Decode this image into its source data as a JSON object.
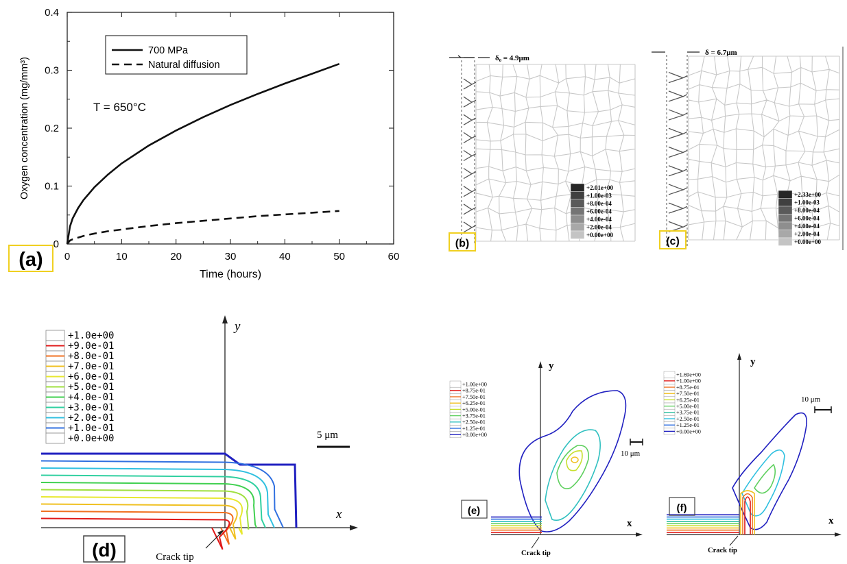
{
  "chart_data": [
    {
      "type": "line",
      "panel": "(a)",
      "xlabel": "Time (hours)",
      "ylabel": "Oxygen concentration (mg/mm³)",
      "xlim": [
        0,
        60
      ],
      "ylim": [
        0,
        0.4
      ],
      "xticks": [
        "0",
        "10",
        "20",
        "30",
        "40",
        "50",
        "60"
      ],
      "yticks": [
        "0",
        "0.1",
        "0.2",
        "0.3",
        "0.4"
      ],
      "annotation": "T = 650°C",
      "legend_position": "top-left",
      "series": [
        {
          "name": "700 MPa",
          "style": "solid",
          "x": [
            0,
            0.5,
            1,
            2,
            3,
            5,
            7.5,
            10,
            15,
            20,
            25,
            30,
            35,
            40,
            45,
            50
          ],
          "y": [
            0,
            0.03,
            0.044,
            0.062,
            0.076,
            0.098,
            0.12,
            0.139,
            0.17,
            0.196,
            0.219,
            0.24,
            0.259,
            0.277,
            0.294,
            0.311
          ]
        },
        {
          "name": "Natural diffusion",
          "style": "dashed",
          "x": [
            0,
            0.5,
            1,
            2,
            3,
            5,
            7.5,
            10,
            15,
            20,
            25,
            30,
            35,
            40,
            45,
            50
          ],
          "y": [
            0,
            0.006,
            0.008,
            0.011,
            0.014,
            0.018,
            0.022,
            0.025,
            0.031,
            0.036,
            0.04,
            0.044,
            0.048,
            0.051,
            0.054,
            0.057
          ]
        }
      ]
    },
    {
      "type": "heatmap",
      "panel": "(b)",
      "annotation": "δ₀ = 4.9μm",
      "legend_levels": [
        "+2.01e+00",
        "+1.00e-03",
        "+8.00e-04",
        "+6.00e-04",
        "+4.00e-04",
        "+2.00e-04",
        "+0.00e+00"
      ]
    },
    {
      "type": "heatmap",
      "panel": "(c)",
      "annotation": "δ = 6.7μm",
      "legend_levels": [
        "+2.33e+00",
        "+1.00e-03",
        "+8.00e-04",
        "+6.00e-04",
        "+4.00e-04",
        "+2.00e-04",
        "+0.00e+00"
      ]
    },
    {
      "type": "heatmap",
      "panel": "(d)",
      "axis_x": "x",
      "axis_y": "y",
      "scale_bar": "5 μm",
      "annotation": "Crack tip",
      "legend_levels": [
        "+1.0e+00",
        "+9.0e-01",
        "+8.0e-01",
        "+7.0e-01",
        "+6.0e-01",
        "+5.0e-01",
        "+4.0e-01",
        "+3.0e-01",
        "+2.0e-01",
        "+1.0e-01",
        "+0.0e+00"
      ],
      "legend_colors": [
        "#ffffff",
        "#e01818",
        "#f07020",
        "#f0c020",
        "#e8e830",
        "#a0e040",
        "#40d050",
        "#30d0a0",
        "#30c0e0",
        "#3070e0",
        "#2020c0"
      ]
    },
    {
      "type": "heatmap",
      "panel": "(e)",
      "axis_x": "x",
      "axis_y": "y",
      "scale_bar": "10 μm",
      "annotation": "Crack tip",
      "legend_levels": [
        "+1.00e+00",
        "+8.75e-01",
        "+7.50e-01",
        "+6.25e-01",
        "+5.00e-01",
        "+3.75e-01",
        "+2.50e-01",
        "+1.25e-01",
        "+0.00e+00"
      ]
    },
    {
      "type": "heatmap",
      "panel": "(f)",
      "axis_x": "x",
      "axis_y": "y",
      "scale_bar": "10 μm",
      "annotation": "Crack tip",
      "legend_levels": [
        "+1.69e+00",
        "+1.00e+00",
        "+8.75e-01",
        "+7.50e-01",
        "+6.25e-01",
        "+5.00e-01",
        "+3.75e-01",
        "+2.50e-01",
        "+1.25e-01",
        "+0.00e+00"
      ]
    }
  ]
}
